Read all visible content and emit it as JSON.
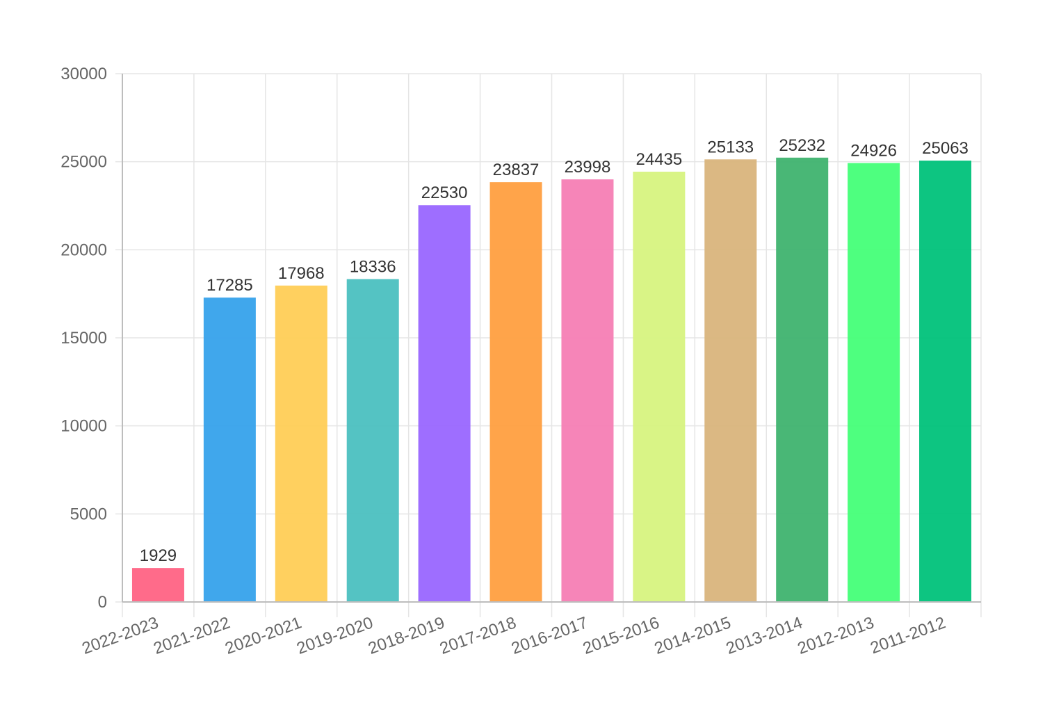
{
  "chart_data": {
    "type": "bar",
    "title": "",
    "xlabel": "",
    "ylabel": "",
    "categories": [
      "2022-2023",
      "2021-2022",
      "2020-2021",
      "2019-2020",
      "2018-2019",
      "2017-2018",
      "2016-2017",
      "2015-2016",
      "2014-2015",
      "2013-2014",
      "2012-2013",
      "2011-2012"
    ],
    "values": [
      1929,
      17285,
      17968,
      18336,
      22530,
      23837,
      23998,
      24435,
      25133,
      25232,
      24926,
      25063
    ],
    "value_labels": [
      "1929",
      "17285",
      "17968",
      "18336",
      "22530",
      "23837",
      "23998",
      "24435",
      "25133",
      "25232",
      "24926",
      "25063"
    ],
    "colors": [
      "#ff6384",
      "#36a2eb",
      "#ffce56",
      "#4bc0c0",
      "#9966ff",
      "#ff9f40",
      "#f67eb4",
      "#d7f37f",
      "#d9b47c",
      "#3fb36f",
      "#44ff78",
      "#00c27a"
    ],
    "ylim": [
      0,
      30000
    ],
    "yticks": [
      0,
      5000,
      10000,
      15000,
      20000,
      25000,
      30000
    ],
    "ytick_labels": [
      "0",
      "5000",
      "10000",
      "15000",
      "20000",
      "25000",
      "30000"
    ],
    "grid": true,
    "legend": "none"
  }
}
